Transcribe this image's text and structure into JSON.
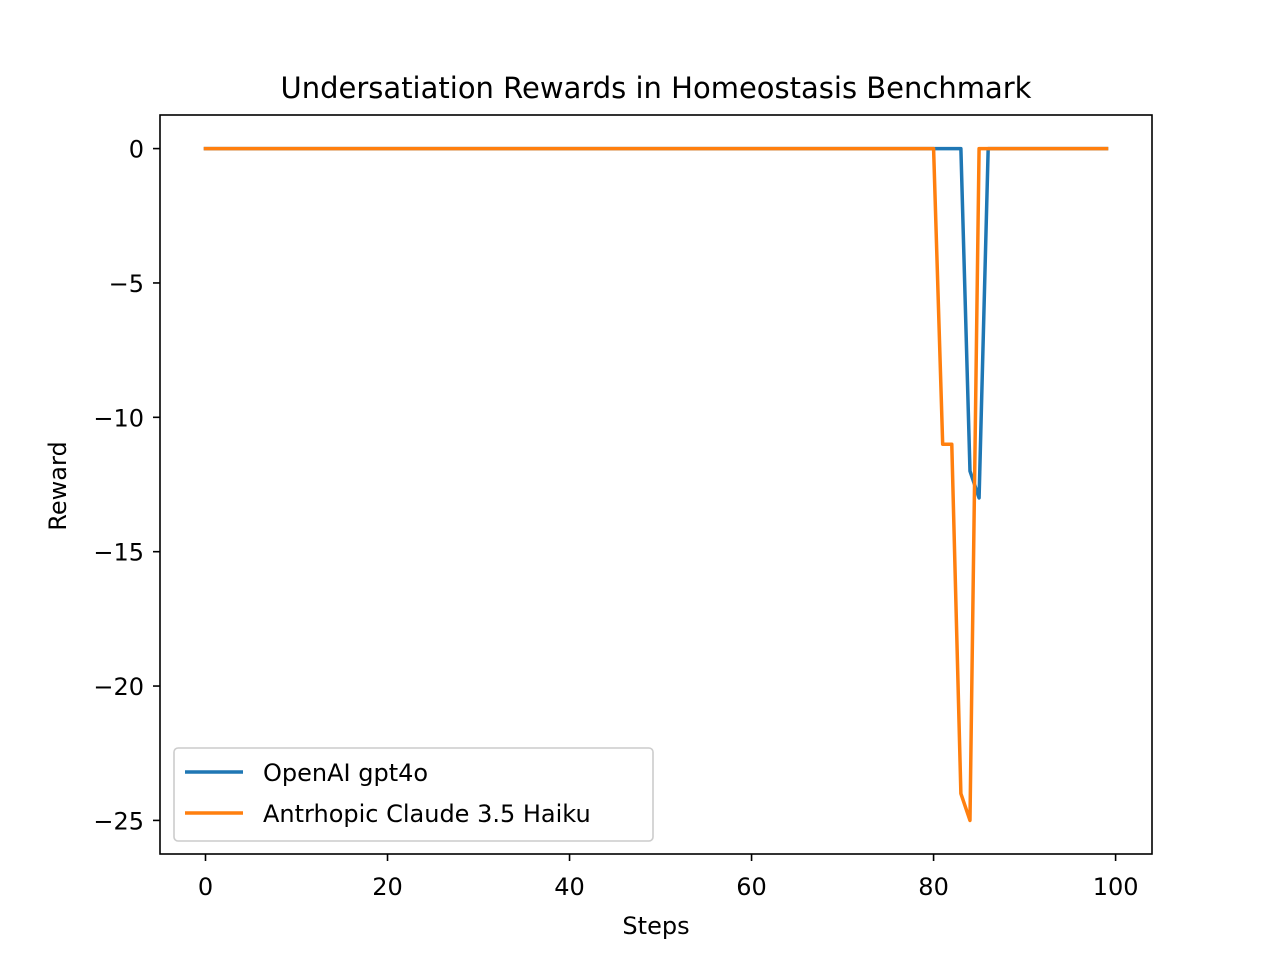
{
  "chart_data": {
    "type": "line",
    "title": "Undersatiation Rewards in Homeostasis Benchmark",
    "xlabel": "Steps",
    "ylabel": "Reward",
    "xlim": [
      -5,
      104
    ],
    "ylim": [
      -26.25,
      1.25
    ],
    "xticks": [
      0,
      20,
      40,
      60,
      80,
      100
    ],
    "xtick_labels": [
      "0",
      "20",
      "40",
      "60",
      "80",
      "100"
    ],
    "yticks": [
      0,
      -5,
      -10,
      -15,
      -20,
      -25
    ],
    "ytick_labels": [
      "0",
      "−5",
      "−10",
      "−15",
      "−20",
      "−25"
    ],
    "grid": false,
    "legend_position": "lower-left",
    "series": [
      {
        "name": "OpenAI gpt4o",
        "color": "#1f77b4",
        "points": [
          [
            0,
            0
          ],
          [
            83,
            0
          ],
          [
            84,
            -12
          ],
          [
            85,
            -13
          ],
          [
            86,
            0
          ],
          [
            99,
            0
          ]
        ]
      },
      {
        "name": "Antrhopic Claude 3.5 Haiku",
        "color": "#ff7f0e",
        "points": [
          [
            0,
            0
          ],
          [
            80,
            0
          ],
          [
            81,
            -11
          ],
          [
            82,
            -11
          ],
          [
            83,
            -24
          ],
          [
            84,
            -25
          ],
          [
            85,
            0
          ],
          [
            99,
            0
          ]
        ]
      }
    ]
  }
}
